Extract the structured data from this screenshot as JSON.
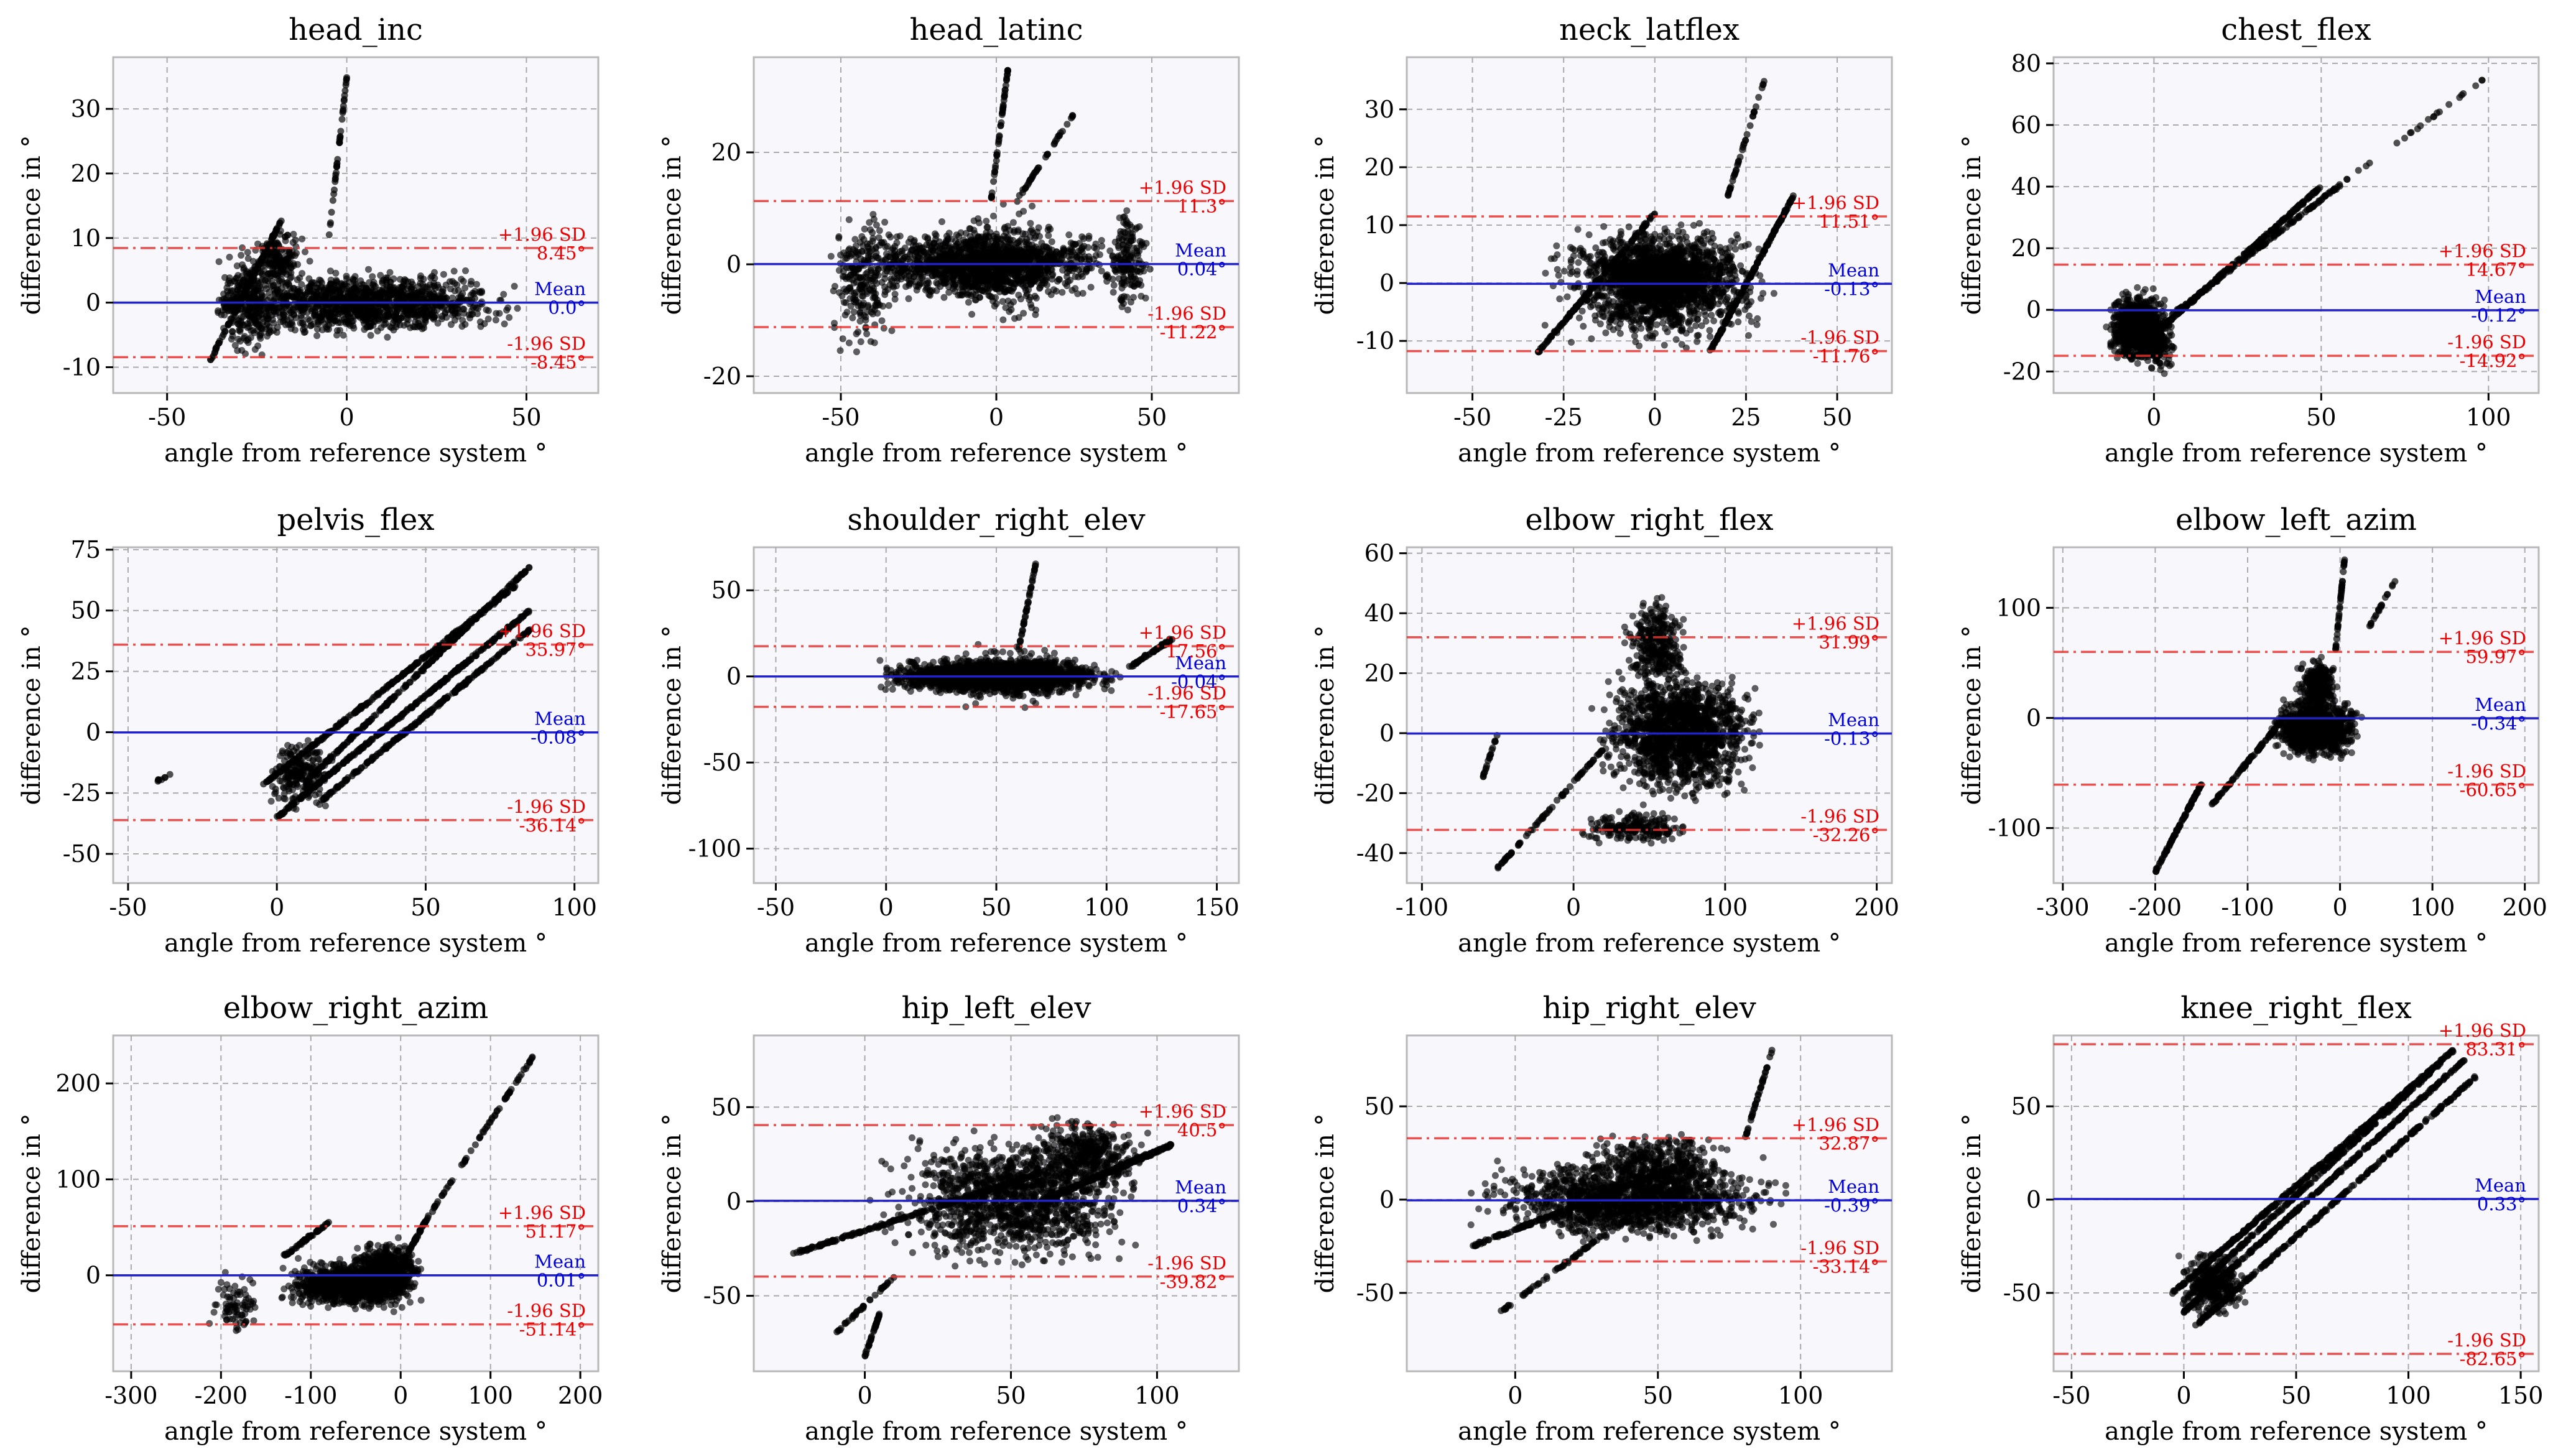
{
  "x_axis_label": "angle from reference system °",
  "y_axis_label": "difference in °",
  "mean_label": "Mean",
  "upper_label": "+1.96 SD",
  "lower_label": "-1.96 SD",
  "colors": {
    "points": "#000000",
    "mean": "#2222cc",
    "limits": "#e8322e",
    "limit_text": "#ee0000",
    "mean_text": "#0000dd"
  },
  "chart_data": [
    {
      "type": "scatter",
      "title": "head_inc",
      "xlim": [
        -65,
        70
      ],
      "ylim": [
        -14,
        38
      ],
      "xticks": [
        -50,
        0,
        50
      ],
      "yticks": [
        -10,
        0,
        10,
        20,
        30
      ],
      "mean": 0.0,
      "upper": 8.45,
      "lower": -8.45,
      "mean_text": "0.0°",
      "upper_text": "8.45°",
      "lower_text": "-8.45°",
      "clusters": [
        {
          "x": [
            -45,
            55
          ],
          "y": [
            -6,
            6
          ],
          "n": 1200
        },
        {
          "x": [
            -40,
            -15
          ],
          "y": [
            -10,
            10
          ],
          "n": 300
        },
        {
          "x": [
            -28,
            -10
          ],
          "y": [
            2,
            12
          ],
          "n": 150
        }
      ],
      "lines": [
        {
          "x": [
            -38,
            -18
          ],
          "y": [
            -9,
            13
          ],
          "n": 120
        },
        {
          "x": [
            -5,
            0
          ],
          "y": [
            10,
            35
          ],
          "n": 40
        }
      ]
    },
    {
      "type": "scatter",
      "title": "head_latinc",
      "xlim": [
        -78,
        78
      ],
      "ylim": [
        -23,
        37
      ],
      "xticks": [
        -50,
        0,
        50
      ],
      "yticks": [
        -20,
        0,
        20
      ],
      "mean": 0.04,
      "upper": 11.3,
      "lower": -11.22,
      "mean_text": "0.04°",
      "upper_text": "11.3°",
      "lower_text": "-11.22°",
      "clusters": [
        {
          "x": [
            -58,
            52
          ],
          "y": [
            -7,
            7
          ],
          "n": 1300
        },
        {
          "x": [
            -55,
            -30
          ],
          "y": [
            -18,
            12
          ],
          "n": 220
        },
        {
          "x": [
            -25,
            25
          ],
          "y": [
            -12,
            12
          ],
          "n": 300
        },
        {
          "x": [
            35,
            50
          ],
          "y": [
            -10,
            12
          ],
          "n": 150
        }
      ],
      "lines": [
        {
          "x": [
            -2,
            4
          ],
          "y": [
            10,
            36
          ],
          "n": 50
        },
        {
          "x": [
            5,
            25
          ],
          "y": [
            10,
            27
          ],
          "n": 40
        }
      ]
    },
    {
      "type": "scatter",
      "title": "neck_latflex",
      "xlim": [
        -68,
        65
      ],
      "ylim": [
        -19,
        39
      ],
      "xticks": [
        -50,
        -25,
        0,
        25,
        50
      ],
      "yticks": [
        -10,
        0,
        10,
        20,
        30
      ],
      "mean": -0.13,
      "upper": 11.51,
      "lower": -11.76,
      "mean_text": "-0.13°",
      "upper_text": "11.51°",
      "lower_text": "-11.76°",
      "clusters": [
        {
          "x": [
            -32,
            35
          ],
          "y": [
            -12,
            12
          ],
          "n": 1500
        },
        {
          "x": [
            -20,
            25
          ],
          "y": [
            -5,
            8
          ],
          "n": 500
        }
      ],
      "lines": [
        {
          "x": [
            -32,
            0
          ],
          "y": [
            -12,
            12
          ],
          "n": 150
        },
        {
          "x": [
            15,
            38
          ],
          "y": [
            -12,
            15
          ],
          "n": 180
        },
        {
          "x": [
            20,
            30
          ],
          "y": [
            15,
            35
          ],
          "n": 40
        }
      ]
    },
    {
      "type": "scatter",
      "title": "chest_flex",
      "xlim": [
        -30,
        115
      ],
      "ylim": [
        -27,
        82
      ],
      "xticks": [
        0,
        50,
        100
      ],
      "yticks": [
        -20,
        0,
        20,
        40,
        60,
        80
      ],
      "mean": -0.12,
      "upper": 14.67,
      "lower": -14.92,
      "mean_text": "-0.12°",
      "upper_text": "14.67°",
      "lower_text": "-14.92°",
      "clusters": [
        {
          "x": [
            -15,
            5
          ],
          "y": [
            -20,
            8
          ],
          "n": 700
        },
        {
          "x": [
            -5,
            8
          ],
          "y": [
            -25,
            5
          ],
          "n": 150
        }
      ],
      "lines": [
        {
          "x": [
            0,
            50
          ],
          "y": [
            -8,
            40
          ],
          "n": 250
        },
        {
          "x": [
            5,
            55
          ],
          "y": [
            -2,
            40
          ],
          "n": 150
        },
        {
          "x": [
            55,
            100
          ],
          "y": [
            40,
            76
          ],
          "n": 25
        }
      ]
    },
    {
      "type": "scatter",
      "title": "pelvis_flex",
      "xlim": [
        -55,
        108
      ],
      "ylim": [
        -62,
        76
      ],
      "xticks": [
        -50,
        0,
        50,
        100
      ],
      "yticks": [
        -50,
        -25,
        0,
        25,
        50,
        75
      ],
      "mean": -0.08,
      "upper": 35.97,
      "lower": -36.14,
      "mean_text": "-0.08°",
      "upper_text": "35.97°",
      "lower_text": "-36.14°",
      "clusters": [
        {
          "x": [
            -5,
            20
          ],
          "y": [
            -35,
            0
          ],
          "n": 200
        }
      ],
      "lines": [
        {
          "x": [
            0,
            85
          ],
          "y": [
            -35,
            50
          ],
          "n": 350
        },
        {
          "x": [
            -5,
            80
          ],
          "y": [
            -22,
            60
          ],
          "n": 300
        },
        {
          "x": [
            10,
            85
          ],
          "y": [
            -20,
            68
          ],
          "n": 250
        },
        {
          "x": [
            15,
            85
          ],
          "y": [
            -28,
            42
          ],
          "n": 250
        },
        {
          "x": [
            -40,
            -35
          ],
          "y": [
            -20,
            -17
          ],
          "n": 8
        }
      ]
    },
    {
      "type": "scatter",
      "title": "shoulder_right_elev",
      "xlim": [
        -60,
        160
      ],
      "ylim": [
        -120,
        75
      ],
      "xticks": [
        -50,
        0,
        50,
        100,
        150
      ],
      "yticks": [
        -100,
        -50,
        0,
        50
      ],
      "mean": -0.04,
      "upper": 17.56,
      "lower": -17.65,
      "mean_text": "-0.04°",
      "upper_text": "17.56°",
      "lower_text": "-17.65°",
      "clusters": [
        {
          "x": [
            -10,
            110
          ],
          "y": [
            -12,
            12
          ],
          "n": 1800
        },
        {
          "x": [
            20,
            100
          ],
          "y": [
            -20,
            20
          ],
          "n": 250
        }
      ],
      "lines": [
        {
          "x": [
            60,
            68
          ],
          "y": [
            15,
            66
          ],
          "n": 40
        },
        {
          "x": [
            110,
            130
          ],
          "y": [
            5,
            22
          ],
          "n": 60
        }
      ]
    },
    {
      "type": "scatter",
      "title": "elbow_right_flex",
      "xlim": [
        -110,
        210
      ],
      "ylim": [
        -50,
        62
      ],
      "xticks": [
        -100,
        0,
        100,
        200
      ],
      "yticks": [
        -40,
        -20,
        0,
        20,
        40,
        60
      ],
      "mean": -0.13,
      "upper": 31.99,
      "lower": -32.26,
      "mean_text": "-0.13°",
      "upper_text": "31.99°",
      "lower_text": "-32.26°",
      "clusters": [
        {
          "x": [
            10,
            130
          ],
          "y": [
            -25,
            25
          ],
          "n": 1500
        },
        {
          "x": [
            30,
            80
          ],
          "y": [
            10,
            50
          ],
          "n": 300
        },
        {
          "x": [
            0,
            80
          ],
          "y": [
            -38,
            -25
          ],
          "n": 200
        }
      ],
      "lines": [
        {
          "x": [
            -50,
            20
          ],
          "y": [
            -45,
            -5
          ],
          "n": 80
        },
        {
          "x": [
            -60,
            -50
          ],
          "y": [
            -15,
            0
          ],
          "n": 20
        }
      ]
    },
    {
      "type": "scatter",
      "title": "elbow_left_azim",
      "xlim": [
        -310,
        215
      ],
      "ylim": [
        -150,
        155
      ],
      "xticks": [
        -300,
        -200,
        -100,
        0,
        100,
        200
      ],
      "yticks": [
        -100,
        0,
        100
      ],
      "mean": -0.34,
      "upper": 59.97,
      "lower": -60.65,
      "mean_text": "-0.34°",
      "upper_text": "59.97°",
      "lower_text": "-60.65°",
      "clusters": [
        {
          "x": [
            -80,
            30
          ],
          "y": [
            -40,
            20
          ],
          "n": 1100
        },
        {
          "x": [
            -50,
            0
          ],
          "y": [
            0,
            60
          ],
          "n": 300
        }
      ],
      "lines": [
        {
          "x": [
            -200,
            -150
          ],
          "y": [
            -140,
            -60
          ],
          "n": 100
        },
        {
          "x": [
            -140,
            -60
          ],
          "y": [
            -80,
            0
          ],
          "n": 100
        },
        {
          "x": [
            -5,
            5
          ],
          "y": [
            60,
            145
          ],
          "n": 40
        },
        {
          "x": [
            30,
            60
          ],
          "y": [
            80,
            125
          ],
          "n": 20
        }
      ]
    },
    {
      "type": "scatter",
      "title": "elbow_right_azim",
      "xlim": [
        -320,
        220
      ],
      "ylim": [
        -100,
        250
      ],
      "xticks": [
        -300,
        -200,
        -100,
        0,
        100,
        200
      ],
      "yticks": [
        0,
        100,
        200
      ],
      "mean": 0.01,
      "upper": 51.17,
      "lower": -51.14,
      "mean_text": "0.01°",
      "upper_text": "51.17°",
      "lower_text": "-51.14°",
      "clusters": [
        {
          "x": [
            -140,
            30
          ],
          "y": [
            -40,
            20
          ],
          "n": 1000
        },
        {
          "x": [
            -60,
            30
          ],
          "y": [
            -25,
            40
          ],
          "n": 400
        },
        {
          "x": [
            -220,
            -150
          ],
          "y": [
            -70,
            10
          ],
          "n": 80
        }
      ],
      "lines": [
        {
          "x": [
            -130,
            -80
          ],
          "y": [
            20,
            55
          ],
          "n": 60
        },
        {
          "x": [
            30,
            150
          ],
          "y": [
            60,
            232
          ],
          "n": 70
        },
        {
          "x": [
            0,
            30
          ],
          "y": [
            10,
            60
          ],
          "n": 50
        }
      ]
    },
    {
      "type": "scatter",
      "title": "hip_left_elev",
      "xlim": [
        -38,
        128
      ],
      "ylim": [
        -90,
        88
      ],
      "xticks": [
        0,
        50,
        100
      ],
      "yticks": [
        -50,
        0,
        50
      ],
      "mean": 0.34,
      "upper": 40.5,
      "lower": -39.82,
      "mean_text": "0.34°",
      "upper_text": "40.5°",
      "lower_text": "-39.82°",
      "clusters": [
        {
          "x": [
            0,
            100
          ],
          "y": [
            -40,
            40
          ],
          "n": 1200
        },
        {
          "x": [
            50,
            100
          ],
          "y": [
            0,
            50
          ],
          "n": 400
        }
      ],
      "lines": [
        {
          "x": [
            -25,
            60
          ],
          "y": [
            -28,
            15
          ],
          "n": 200
        },
        {
          "x": [
            60,
            105
          ],
          "y": [
            0,
            30
          ],
          "n": 300
        },
        {
          "x": [
            0,
            5
          ],
          "y": [
            -82,
            -60
          ],
          "n": 40
        },
        {
          "x": [
            -10,
            10
          ],
          "y": [
            -70,
            -40
          ],
          "n": 40
        }
      ]
    },
    {
      "type": "scatter",
      "title": "hip_right_elev",
      "xlim": [
        -38,
        132
      ],
      "ylim": [
        -92,
        88
      ],
      "xticks": [
        0,
        50,
        100
      ],
      "yticks": [
        -50,
        0,
        50
      ],
      "mean": -0.39,
      "upper": 32.87,
      "lower": -33.14,
      "mean_text": "-0.39°",
      "upper_text": "32.87°",
      "lower_text": "-33.14°",
      "clusters": [
        {
          "x": [
            -20,
            100
          ],
          "y": [
            -25,
            25
          ],
          "n": 1400
        },
        {
          "x": [
            20,
            80
          ],
          "y": [
            0,
            40
          ],
          "n": 300
        }
      ],
      "lines": [
        {
          "x": [
            -15,
            60
          ],
          "y": [
            -25,
            20
          ],
          "n": 200
        },
        {
          "x": [
            -5,
            30
          ],
          "y": [
            -60,
            -20
          ],
          "n": 60
        },
        {
          "x": [
            80,
            90
          ],
          "y": [
            30,
            80
          ],
          "n": 40
        }
      ]
    },
    {
      "type": "scatter",
      "title": "knee_right_flex",
      "xlim": [
        -58,
        158
      ],
      "ylim": [
        -92,
        88
      ],
      "xticks": [
        -50,
        0,
        50,
        100,
        150
      ],
      "yticks": [
        -50,
        0,
        50
      ],
      "mean": 0.33,
      "upper": 83.31,
      "lower": -82.65,
      "mean_text": "0.33°",
      "upper_text": "83.31°",
      "lower_text": "-82.65°",
      "clusters": [
        {
          "x": [
            -5,
            30
          ],
          "y": [
            -65,
            -25
          ],
          "n": 300
        }
      ],
      "lines": [
        {
          "x": [
            -5,
            120
          ],
          "y": [
            -50,
            80
          ],
          "n": 400
        },
        {
          "x": [
            0,
            125
          ],
          "y": [
            -60,
            75
          ],
          "n": 350
        },
        {
          "x": [
            5,
            130
          ],
          "y": [
            -68,
            66
          ],
          "n": 300
        },
        {
          "x": [
            10,
            115
          ],
          "y": [
            -42,
            74
          ],
          "n": 250
        }
      ]
    }
  ]
}
